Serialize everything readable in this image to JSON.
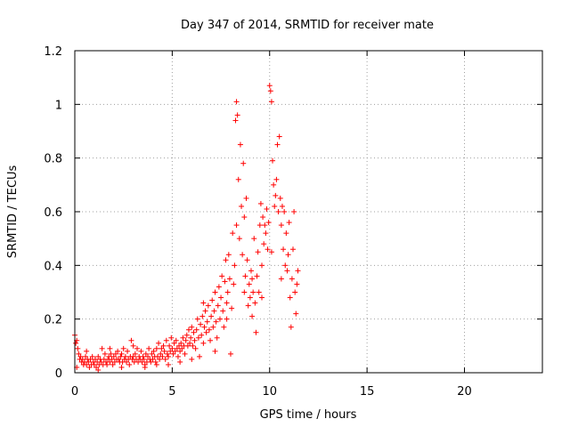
{
  "chart_data": {
    "type": "scatter",
    "title": "Day 347 of 2014, SRMTID for receiver mate",
    "xlabel": "GPS time / hours",
    "ylabel": "SRMTID / TECUs",
    "xlim": [
      0,
      24
    ],
    "ylim": [
      0,
      1.2
    ],
    "xticks": [
      0,
      5,
      10,
      15,
      20
    ],
    "yticks": [
      0,
      0.2,
      0.4,
      0.6,
      0.8,
      1,
      1.2
    ],
    "xtick_labels": [
      "0",
      "5",
      "10",
      "15",
      "20"
    ],
    "ytick_labels": [
      "0",
      "0.2",
      "0.4",
      "0.6",
      "0.8",
      "1",
      "1.2"
    ],
    "grid": true,
    "marker": "+",
    "series": [
      {
        "name": "SRMTID",
        "color": "#ff0000",
        "points": [
          [
            0.0,
            0.14
          ],
          [
            0.05,
            0.11
          ],
          [
            0.1,
            0.12
          ],
          [
            0.15,
            0.09
          ],
          [
            0.2,
            0.07
          ],
          [
            0.25,
            0.05
          ],
          [
            0.3,
            0.06
          ],
          [
            0.35,
            0.04
          ],
          [
            0.4,
            0.05
          ],
          [
            0.45,
            0.03
          ],
          [
            0.5,
            0.04
          ],
          [
            0.55,
            0.06
          ],
          [
            0.6,
            0.03
          ],
          [
            0.65,
            0.05
          ],
          [
            0.7,
            0.04
          ],
          [
            0.75,
            0.02
          ],
          [
            0.8,
            0.05
          ],
          [
            0.85,
            0.03
          ],
          [
            0.9,
            0.06
          ],
          [
            0.95,
            0.04
          ],
          [
            1.0,
            0.03
          ],
          [
            1.05,
            0.05
          ],
          [
            1.1,
            0.02
          ],
          [
            1.15,
            0.04
          ],
          [
            1.2,
            0.06
          ],
          [
            1.25,
            0.03
          ],
          [
            1.3,
            0.05
          ],
          [
            1.35,
            0.04
          ],
          [
            1.4,
            0.09
          ],
          [
            1.45,
            0.03
          ],
          [
            1.5,
            0.05
          ],
          [
            1.55,
            0.07
          ],
          [
            1.6,
            0.04
          ],
          [
            1.65,
            0.03
          ],
          [
            1.7,
            0.05
          ],
          [
            1.75,
            0.06
          ],
          [
            1.8,
            0.04
          ],
          [
            1.85,
            0.07
          ],
          [
            1.9,
            0.05
          ],
          [
            1.95,
            0.03
          ],
          [
            2.0,
            0.06
          ],
          [
            2.05,
            0.04
          ],
          [
            2.1,
            0.07
          ],
          [
            2.15,
            0.05
          ],
          [
            2.2,
            0.08
          ],
          [
            2.25,
            0.05
          ],
          [
            2.3,
            0.04
          ],
          [
            2.35,
            0.06
          ],
          [
            2.4,
            0.07
          ],
          [
            2.45,
            0.04
          ],
          [
            2.5,
            0.09
          ],
          [
            2.55,
            0.05
          ],
          [
            2.6,
            0.06
          ],
          [
            2.65,
            0.04
          ],
          [
            2.7,
            0.08
          ],
          [
            2.75,
            0.05
          ],
          [
            2.8,
            0.03
          ],
          [
            2.85,
            0.06
          ],
          [
            2.9,
            0.12
          ],
          [
            2.95,
            0.05
          ],
          [
            3.0,
            0.06
          ],
          [
            3.05,
            0.04
          ],
          [
            3.1,
            0.07
          ],
          [
            3.15,
            0.05
          ],
          [
            3.2,
            0.09
          ],
          [
            3.25,
            0.04
          ],
          [
            3.3,
            0.06
          ],
          [
            3.35,
            0.05
          ],
          [
            3.4,
            0.08
          ],
          [
            3.45,
            0.04
          ],
          [
            3.5,
            0.06
          ],
          [
            3.55,
            0.05
          ],
          [
            3.6,
            0.03
          ],
          [
            3.65,
            0.07
          ],
          [
            3.7,
            0.04
          ],
          [
            3.75,
            0.06
          ],
          [
            3.8,
            0.09
          ],
          [
            3.85,
            0.05
          ],
          [
            3.9,
            0.04
          ],
          [
            3.95,
            0.07
          ],
          [
            4.0,
            0.05
          ],
          [
            4.05,
            0.08
          ],
          [
            4.1,
            0.06
          ],
          [
            4.15,
            0.04
          ],
          [
            4.2,
            0.09
          ],
          [
            4.25,
            0.06
          ],
          [
            4.3,
            0.11
          ],
          [
            4.35,
            0.05
          ],
          [
            4.4,
            0.07
          ],
          [
            4.45,
            0.09
          ],
          [
            4.5,
            0.06
          ],
          [
            4.55,
            0.1
          ],
          [
            4.6,
            0.08
          ],
          [
            4.65,
            0.05
          ],
          [
            4.7,
            0.12
          ],
          [
            4.75,
            0.07
          ],
          [
            4.8,
            0.06
          ],
          [
            4.85,
            0.1
          ],
          [
            4.9,
            0.08
          ],
          [
            4.95,
            0.13
          ],
          [
            5.0,
            0.09
          ],
          [
            5.05,
            0.07
          ],
          [
            5.1,
            0.11
          ],
          [
            5.15,
            0.08
          ],
          [
            5.2,
            0.12
          ],
          [
            5.25,
            0.09
          ],
          [
            5.3,
            0.06
          ],
          [
            5.35,
            0.1
          ],
          [
            5.4,
            0.08
          ],
          [
            5.45,
            0.11
          ],
          [
            5.5,
            0.09
          ],
          [
            5.55,
            0.13
          ],
          [
            5.6,
            0.1
          ],
          [
            5.65,
            0.07
          ],
          [
            5.7,
            0.12
          ],
          [
            5.75,
            0.14
          ],
          [
            5.8,
            0.1
          ],
          [
            5.85,
            0.16
          ],
          [
            5.9,
            0.11
          ],
          [
            5.95,
            0.13
          ],
          [
            6.0,
            0.17
          ],
          [
            6.05,
            0.1
          ],
          [
            6.1,
            0.15
          ],
          [
            6.15,
            0.12
          ],
          [
            6.2,
            0.09
          ],
          [
            6.25,
            0.16
          ],
          [
            6.3,
            0.2
          ],
          [
            6.35,
            0.13
          ],
          [
            6.4,
            0.06
          ],
          [
            6.45,
            0.18
          ],
          [
            6.5,
            0.14
          ],
          [
            6.55,
            0.21
          ],
          [
            6.6,
            0.11
          ],
          [
            6.65,
            0.17
          ],
          [
            6.7,
            0.23
          ],
          [
            6.75,
            0.15
          ],
          [
            6.8,
            0.19
          ],
          [
            6.85,
            0.25
          ],
          [
            6.9,
            0.16
          ],
          [
            6.95,
            0.12
          ],
          [
            7.0,
            0.21
          ],
          [
            7.05,
            0.27
          ],
          [
            7.1,
            0.17
          ],
          [
            7.15,
            0.23
          ],
          [
            7.2,
            0.3
          ],
          [
            7.25,
            0.19
          ],
          [
            7.3,
            0.13
          ],
          [
            7.35,
            0.25
          ],
          [
            7.4,
            0.32
          ],
          [
            7.45,
            0.2
          ],
          [
            7.5,
            0.28
          ],
          [
            7.55,
            0.36
          ],
          [
            7.6,
            0.23
          ],
          [
            7.65,
            0.17
          ],
          [
            7.7,
            0.34
          ],
          [
            7.75,
            0.42
          ],
          [
            7.8,
            0.26
          ],
          [
            7.85,
            0.3
          ],
          [
            7.9,
            0.44
          ],
          [
            7.95,
            0.35
          ],
          [
            8.0,
            0.07
          ],
          [
            8.05,
            0.24
          ],
          [
            8.1,
            0.52
          ],
          [
            8.15,
            0.33
          ],
          [
            8.2,
            0.4
          ],
          [
            8.25,
            0.94
          ],
          [
            8.3,
            1.01
          ],
          [
            8.35,
            0.96
          ],
          [
            8.4,
            0.72
          ],
          [
            8.45,
            0.5
          ],
          [
            8.5,
            0.85
          ],
          [
            8.55,
            0.62
          ],
          [
            8.6,
            0.44
          ],
          [
            8.65,
            0.78
          ],
          [
            8.7,
            0.58
          ],
          [
            8.75,
            0.36
          ],
          [
            8.8,
            0.65
          ],
          [
            8.85,
            0.42
          ],
          [
            8.9,
            0.25
          ],
          [
            8.95,
            0.33
          ],
          [
            9.0,
            0.28
          ],
          [
            9.05,
            0.38
          ],
          [
            9.1,
            0.21
          ],
          [
            9.15,
            0.3
          ],
          [
            9.2,
            0.5
          ],
          [
            9.25,
            0.26
          ],
          [
            9.3,
            0.15
          ],
          [
            9.35,
            0.36
          ],
          [
            9.4,
            0.45
          ],
          [
            9.45,
            0.3
          ],
          [
            9.5,
            0.55
          ],
          [
            9.55,
            0.63
          ],
          [
            9.6,
            0.4
          ],
          [
            9.65,
            0.58
          ],
          [
            9.7,
            0.48
          ],
          [
            9.75,
            0.55
          ],
          [
            9.8,
            0.52
          ],
          [
            9.85,
            0.61
          ],
          [
            9.9,
            0.46
          ],
          [
            9.95,
            0.56
          ],
          [
            10.0,
            1.07
          ],
          [
            10.05,
            1.05
          ],
          [
            10.1,
            1.01
          ],
          [
            10.15,
            0.79
          ],
          [
            10.2,
            0.7
          ],
          [
            10.25,
            0.62
          ],
          [
            10.3,
            0.66
          ],
          [
            10.35,
            0.72
          ],
          [
            10.4,
            0.85
          ],
          [
            10.45,
            0.6
          ],
          [
            10.5,
            0.88
          ],
          [
            10.55,
            0.65
          ],
          [
            10.6,
            0.55
          ],
          [
            10.65,
            0.62
          ],
          [
            10.7,
            0.46
          ],
          [
            10.75,
            0.6
          ],
          [
            10.8,
            0.4
          ],
          [
            10.85,
            0.52
          ],
          [
            10.9,
            0.38
          ],
          [
            10.95,
            0.44
          ],
          [
            11.0,
            0.56
          ],
          [
            11.05,
            0.28
          ],
          [
            11.1,
            0.17
          ],
          [
            11.15,
            0.35
          ],
          [
            11.2,
            0.46
          ],
          [
            11.25,
            0.6
          ],
          [
            11.3,
            0.3
          ],
          [
            11.35,
            0.22
          ],
          [
            11.4,
            0.33
          ],
          [
            11.45,
            0.38
          ],
          [
            0.1,
            0.02
          ],
          [
            0.6,
            0.08
          ],
          [
            1.2,
            0.01
          ],
          [
            1.8,
            0.09
          ],
          [
            2.4,
            0.02
          ],
          [
            3.0,
            0.1
          ],
          [
            3.6,
            0.02
          ],
          [
            4.2,
            0.03
          ],
          [
            4.8,
            0.03
          ],
          [
            5.4,
            0.04
          ],
          [
            6.0,
            0.05
          ],
          [
            6.6,
            0.26
          ],
          [
            7.2,
            0.08
          ],
          [
            7.8,
            0.2
          ],
          [
            8.3,
            0.55
          ],
          [
            8.7,
            0.3
          ],
          [
            9.1,
            0.35
          ],
          [
            9.6,
            0.28
          ],
          [
            10.1,
            0.45
          ],
          [
            10.6,
            0.35
          ]
        ]
      }
    ]
  }
}
